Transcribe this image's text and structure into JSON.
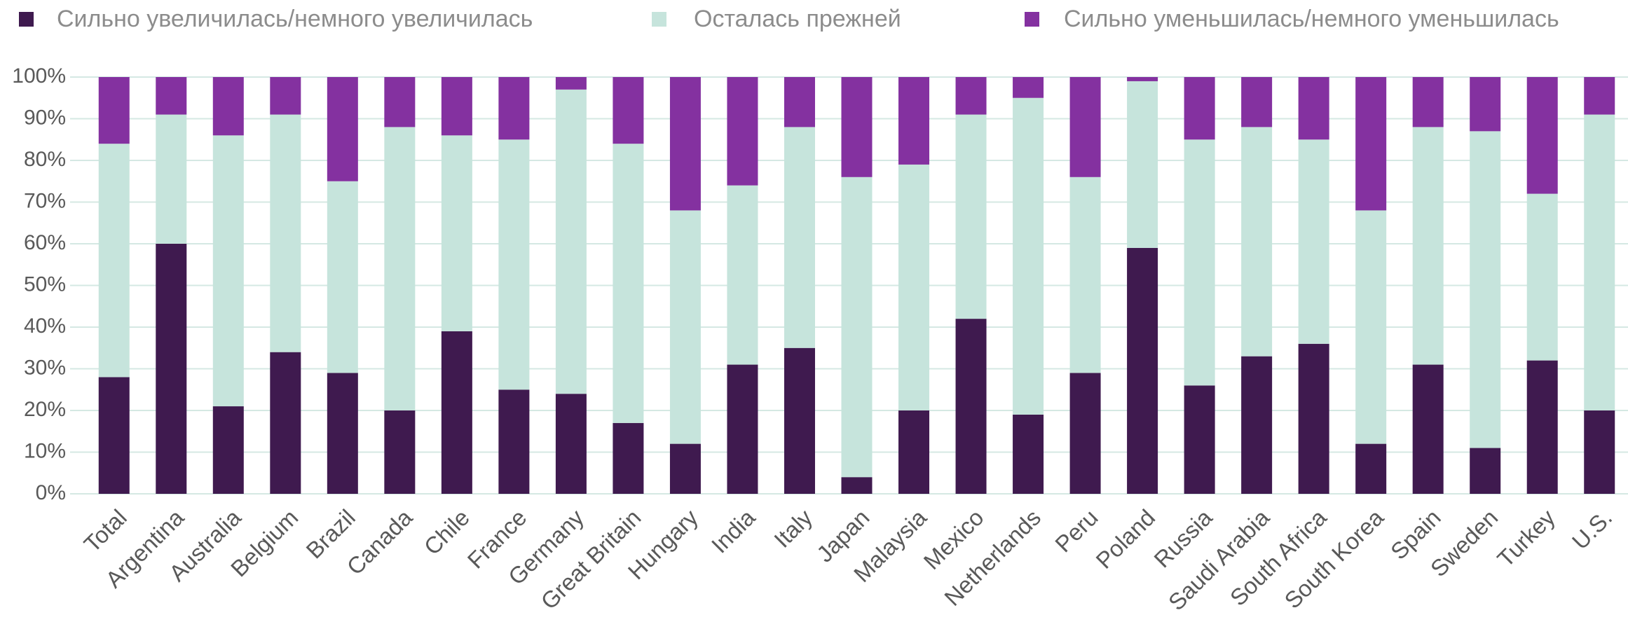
{
  "chart_data": {
    "type": "stacked_bar",
    "categories": [
      "Total",
      "Argentina",
      "Australia",
      "Belgium",
      "Brazil",
      "Canada",
      "Chile",
      "France",
      "Germany",
      "Great Britain",
      "Hungary",
      "India",
      "Italy",
      "Japan",
      "Malaysia",
      "Mexico",
      "Netherlands",
      "Peru",
      "Poland",
      "Russia",
      "Saudi Arabia",
      "South Africa",
      "South Korea",
      "Spain",
      "Sweden",
      "Turkey",
      "U.S."
    ],
    "series": [
      {
        "name": "Сильно увеличилась/немного увеличилась",
        "color": "#3f1a4f",
        "values": [
          28,
          60,
          21,
          34,
          29,
          20,
          39,
          25,
          24,
          17,
          12,
          31,
          35,
          4,
          20,
          42,
          19,
          29,
          59,
          26,
          33,
          36,
          12,
          31,
          11,
          32,
          20
        ]
      },
      {
        "name": "Осталась прежней",
        "color": "#c6e4dc",
        "values": [
          56,
          31,
          65,
          57,
          46,
          68,
          47,
          60,
          73,
          67,
          56,
          43,
          53,
          72,
          59,
          49,
          76,
          47,
          40,
          59,
          55,
          49,
          56,
          57,
          76,
          40,
          71
        ]
      },
      {
        "name": "Сильно уменьшилась/немного уменьшилась",
        "color": "#8431a0",
        "values": [
          16,
          9,
          14,
          9,
          25,
          12,
          14,
          15,
          3,
          16,
          32,
          26,
          12,
          24,
          21,
          9,
          5,
          24,
          1,
          15,
          12,
          15,
          32,
          12,
          13,
          28,
          9
        ]
      }
    ],
    "ylim": [
      0,
      100
    ],
    "yticks": [
      {
        "value": 0,
        "label": "0%"
      },
      {
        "value": 10,
        "label": "10%"
      },
      {
        "value": 20,
        "label": "20%"
      },
      {
        "value": 30,
        "label": "30%"
      },
      {
        "value": 40,
        "label": "40%"
      },
      {
        "value": 50,
        "label": "50%"
      },
      {
        "value": 60,
        "label": "60%"
      },
      {
        "value": 70,
        "label": "70%"
      },
      {
        "value": 80,
        "label": "80%"
      },
      {
        "value": 90,
        "label": "90%"
      },
      {
        "value": 100,
        "label": "100%"
      }
    ],
    "grid": true,
    "legend": "top"
  }
}
